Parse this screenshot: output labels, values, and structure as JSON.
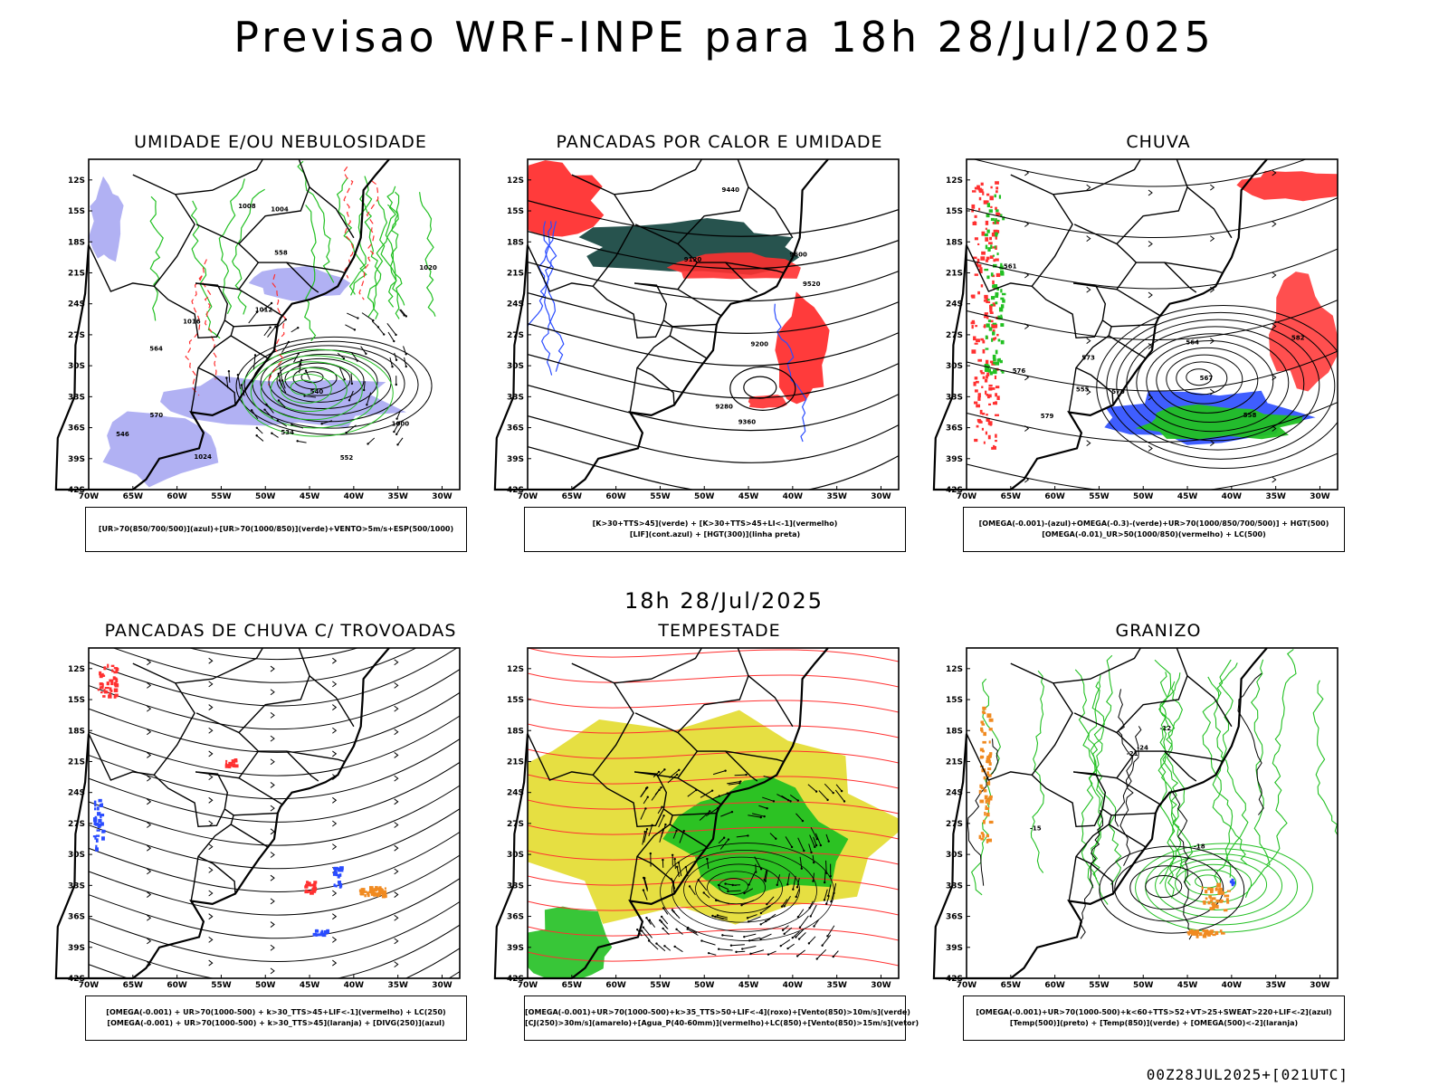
{
  "title": "Previsao WRF-INPE  para 18h 28/Jul/2025",
  "subtitle": "18h 28/Jul/2025",
  "footer": "00Z28JUL2025+[021UTC]",
  "axes": {
    "lat_labels": [
      "12S",
      "15S",
      "18S",
      "21S",
      "24S",
      "27S",
      "30S",
      "33S",
      "36S",
      "39S",
      "42S"
    ],
    "lon_labels": [
      "70W",
      "65W",
      "60W",
      "55W",
      "50W",
      "45W",
      "40W",
      "35W",
      "30W"
    ]
  },
  "colors": {
    "blue_shade": "#a9a9f2",
    "green": "#22c022",
    "red": "#ff3030",
    "dark_green": "#1b4a44",
    "yellow": "#e3db2d",
    "blue": "#2a4cff",
    "orange": "#f08a20"
  },
  "panels": [
    {
      "title": "UMIDADE E/OU NEBULOSIDADE",
      "legend": [
        "[UR>70(850/700/500)](azul)+[UR>70(1000/850)](verde)+VENTO>5m/s+ESP(500/1000)"
      ],
      "labels": [
        "1012",
        "1016",
        "1020",
        "1024",
        "1008",
        "1000",
        "1004",
        "570",
        "564",
        "558",
        "552",
        "546",
        "540",
        "534"
      ]
    },
    {
      "title": "PANCADAS POR CALOR E UMIDADE",
      "legend": [
        "[K>30+TTS>45](verde) + [K>30+TTS>45+LI<-1](vermelho)",
        "[LIF](cont.azul) + [HGT(300)](linha preta)"
      ],
      "labels": [
        "9600",
        "9520",
        "9440",
        "9360",
        "9280",
        "9200",
        "9120"
      ]
    },
    {
      "title": "CHUVA",
      "legend": [
        "[OMEGA(-0.001)-(azul)+OMEGA(-0.3)-(verde)+UR>70(1000/850/700/500)] + HGT(500)",
        "[OMEGA(-0.01)_UR>50(1000/850)(vermelho) + LC(500)"
      ],
      "labels": [
        "582",
        "579",
        "576",
        "573",
        "570",
        "567",
        "564",
        "561",
        "558",
        "555"
      ]
    },
    {
      "title": "PANCADAS DE CHUVA C/ TROVOADAS",
      "legend": [
        "[OMEGA(-0.001) + UR>70(1000-500) + k>30_TTS>45+LIF<-1](vermelho) + LC(250)",
        "[OMEGA(-0.001) + UR>70(1000-500) + k>30_TTS>45](laranja) + [DIVG(250)](azul)"
      ],
      "labels": []
    },
    {
      "title": "TEMPESTADE",
      "legend": [
        "[OMEGA(-0.001)+UR>70(1000-500)+k>35_TTS>50+LIF<-4](roxo)+[Vento(850)>10m/s](verde)",
        "[CJ(250)>30m/s](amarelo)+[Agua_P(40-60mm)](vermelho)+LC(850)+[Vento(850)>15m/s](vetor)"
      ],
      "labels": []
    },
    {
      "title": "GRANIZO",
      "legend": [
        "[OMEGA(-0.001)+UR>70(1000-500)+k<60+TTS>52+VT>25+SWEAT>220+LIF<-2](azul)",
        "[Temp(500)](preto) + [Temp(850)](verde) + [OMEGA(500)<-2](laranja)"
      ],
      "labels": [
        "-12",
        "-15",
        "-21",
        "-24",
        "-18"
      ]
    }
  ]
}
